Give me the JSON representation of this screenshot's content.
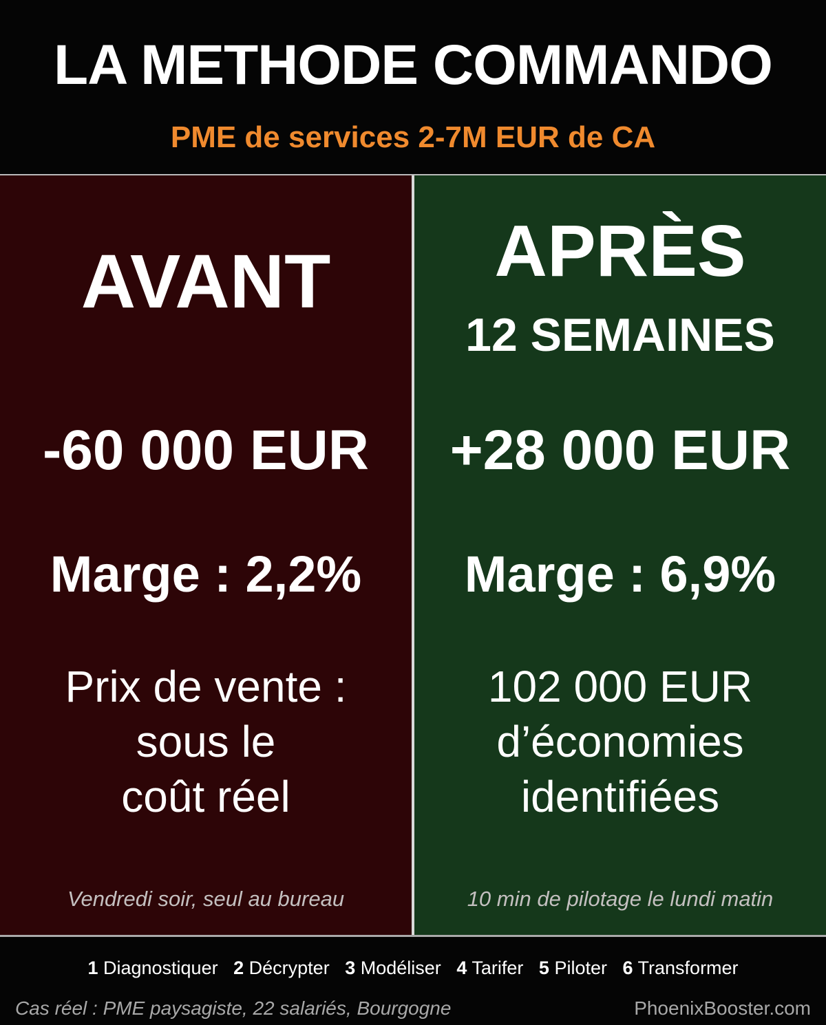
{
  "header": {
    "title": "LA METHODE COMMANDO",
    "subtitle": "PME de services 2-7M EUR de CA",
    "subtitle_color": "#f08a2e"
  },
  "before": {
    "heading": "AVANT",
    "amount": "-60 000 EUR",
    "margin": "Marge : 2,2%",
    "detail": [
      "Prix de vente :",
      "sous le",
      "coût réel"
    ],
    "caption": "Vendredi soir, seul au bureau",
    "color": "#2d0507"
  },
  "after": {
    "heading": "APRÈS",
    "subheading": "12 SEMAINES",
    "amount": "+28 000 EUR",
    "margin": "Marge : 6,9%",
    "detail": [
      "102 000 EUR",
      "d’économies",
      "identifiées"
    ],
    "caption": "10 min de pilotage le lundi matin",
    "color": "#15381b"
  },
  "steps": [
    {
      "num": "1",
      "label": "Diagnostiquer"
    },
    {
      "num": "2",
      "label": "Décrypter"
    },
    {
      "num": "3",
      "label": "Modéliser"
    },
    {
      "num": "4",
      "label": "Tarifer"
    },
    {
      "num": "5",
      "label": "Piloter"
    },
    {
      "num": "6",
      "label": "Transformer"
    }
  ],
  "footer": {
    "case": "Cas réel : PME paysagiste, 22 salariés, Bourgogne",
    "site": "PhoenixBooster.com"
  }
}
